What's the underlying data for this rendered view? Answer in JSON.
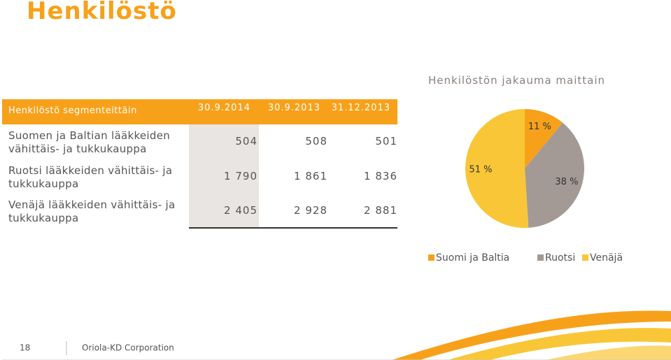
{
  "title": "Henkilöstö",
  "table": {
    "header": [
      "Henkilöstö segmenteittäin",
      "30.9.2014",
      "30.9.2013",
      "31.12.2013"
    ],
    "rows": [
      [
        "Suomen ja Baltian lääkkeiden vähittäis- ja tukkukauppa",
        "504",
        "508",
        "501"
      ],
      [
        "Ruotsi lääkkeiden vähittäis- ja tukkukauppa",
        "1 790",
        "1 861",
        "1 836"
      ],
      [
        "Venäjä lääkkeiden vähittäis- ja tukkukauppa",
        "2 405",
        "2 928",
        "2 881"
      ]
    ]
  },
  "chart_data": {
    "type": "pie",
    "title": "Henkilöstön jakauma maittain",
    "categories": [
      "Suomi ja Baltia",
      "Ruotsi",
      "Venäjä"
    ],
    "values": [
      11,
      38,
      51
    ],
    "value_labels": [
      "11 %",
      "38 %",
      "51 %"
    ],
    "colors": [
      "#f7a11a",
      "#a39a95",
      "#f9c637"
    ]
  },
  "footer": {
    "page": "18",
    "company": "Oriola-KD Corporation"
  }
}
